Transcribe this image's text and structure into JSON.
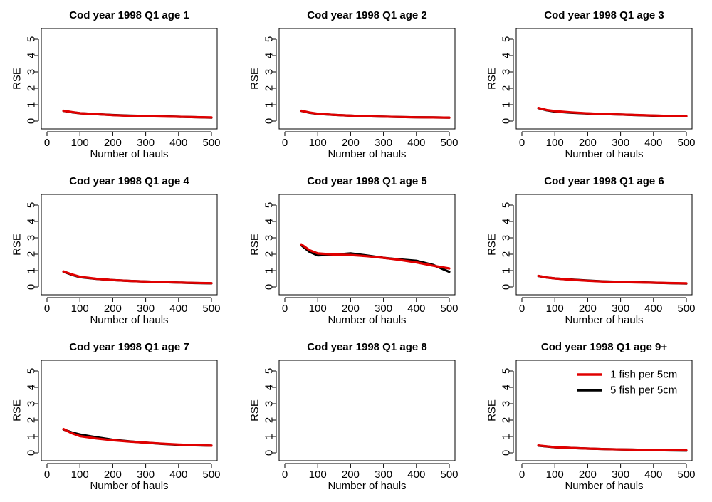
{
  "figure": {
    "ylabel": "RSE",
    "xlabel": "Number of hauls",
    "legend": {
      "placement": "top-right of panel 9",
      "entries": [
        {
          "name": "1 fish per 5cm",
          "color": "#e00000"
        },
        {
          "name": "5 fish per 5cm",
          "color": "#000000"
        }
      ]
    }
  },
  "chart_data": [
    {
      "type": "line",
      "title": "Cod year 1998 Q1 age 1",
      "xlabel": "Number of hauls",
      "ylabel": "RSE",
      "xlim": [
        0,
        500
      ],
      "ylim": [
        0,
        5
      ],
      "xticks": [
        "0",
        "100",
        "200",
        "300",
        "400",
        "500"
      ],
      "yticks": [
        "0",
        "1",
        "2",
        "3",
        "4",
        "5"
      ],
      "grid": false,
      "x": [
        50,
        75,
        100,
        150,
        200,
        250,
        300,
        350,
        400,
        450,
        500
      ],
      "series": [
        {
          "name": "1 fish per 5cm",
          "color": "#e00000",
          "values": [
            0.63,
            0.55,
            0.48,
            0.42,
            0.36,
            0.32,
            0.3,
            0.28,
            0.26,
            0.24,
            0.22
          ]
        },
        {
          "name": "5 fish per 5cm",
          "color": "#000000",
          "values": [
            0.62,
            0.54,
            0.48,
            0.42,
            0.37,
            0.33,
            0.31,
            0.29,
            0.26,
            0.24,
            0.21
          ]
        }
      ]
    },
    {
      "type": "line",
      "title": "Cod year 1998 Q1 age 2",
      "xlabel": "Number of hauls",
      "ylabel": "RSE",
      "xlim": [
        0,
        500
      ],
      "ylim": [
        0,
        5
      ],
      "xticks": [
        "0",
        "100",
        "200",
        "300",
        "400",
        "500"
      ],
      "yticks": [
        "0",
        "1",
        "2",
        "3",
        "4",
        "5"
      ],
      "grid": false,
      "x": [
        50,
        75,
        100,
        150,
        200,
        250,
        300,
        350,
        400,
        450,
        500
      ],
      "series": [
        {
          "name": "1 fish per 5cm",
          "color": "#e00000",
          "values": [
            0.63,
            0.52,
            0.45,
            0.38,
            0.33,
            0.29,
            0.27,
            0.25,
            0.23,
            0.22,
            0.21
          ]
        },
        {
          "name": "5 fish per 5cm",
          "color": "#000000",
          "values": [
            0.62,
            0.51,
            0.44,
            0.38,
            0.33,
            0.29,
            0.27,
            0.25,
            0.23,
            0.22,
            0.21
          ]
        }
      ]
    },
    {
      "type": "line",
      "title": "Cod year 1998 Q1 age 3",
      "xlabel": "Number of hauls",
      "ylabel": "RSE",
      "xlim": [
        0,
        500
      ],
      "ylim": [
        0,
        5
      ],
      "xticks": [
        "0",
        "100",
        "200",
        "300",
        "400",
        "500"
      ],
      "yticks": [
        "0",
        "1",
        "2",
        "3",
        "4",
        "5"
      ],
      "grid": false,
      "x": [
        50,
        75,
        100,
        150,
        200,
        250,
        300,
        350,
        400,
        450,
        500
      ],
      "series": [
        {
          "name": "1 fish per 5cm",
          "color": "#e00000",
          "values": [
            0.8,
            0.68,
            0.61,
            0.53,
            0.47,
            0.43,
            0.4,
            0.37,
            0.34,
            0.31,
            0.29
          ]
        },
        {
          "name": "5 fish per 5cm",
          "color": "#000000",
          "values": [
            0.79,
            0.66,
            0.58,
            0.51,
            0.46,
            0.43,
            0.4,
            0.36,
            0.33,
            0.31,
            0.29
          ]
        }
      ]
    },
    {
      "type": "line",
      "title": "Cod year 1998 Q1 age 4",
      "xlabel": "Number of hauls",
      "ylabel": "RSE",
      "xlim": [
        0,
        500
      ],
      "ylim": [
        0,
        5
      ],
      "xticks": [
        "0",
        "100",
        "200",
        "300",
        "400",
        "500"
      ],
      "yticks": [
        "0",
        "1",
        "2",
        "3",
        "4",
        "5"
      ],
      "grid": false,
      "x": [
        50,
        75,
        100,
        150,
        200,
        250,
        300,
        350,
        400,
        450,
        500
      ],
      "series": [
        {
          "name": "1 fish per 5cm",
          "color": "#e00000",
          "values": [
            0.95,
            0.77,
            0.62,
            0.5,
            0.42,
            0.37,
            0.33,
            0.3,
            0.27,
            0.25,
            0.23
          ]
        },
        {
          "name": "5 fish per 5cm",
          "color": "#000000",
          "values": [
            0.93,
            0.75,
            0.6,
            0.49,
            0.42,
            0.37,
            0.33,
            0.3,
            0.27,
            0.24,
            0.22
          ]
        }
      ]
    },
    {
      "type": "line",
      "title": "Cod year 1998 Q1 age 5",
      "xlabel": "Number of hauls",
      "ylabel": "RSE",
      "xlim": [
        0,
        500
      ],
      "ylim": [
        0,
        5
      ],
      "xticks": [
        "0",
        "100",
        "200",
        "300",
        "400",
        "500"
      ],
      "yticks": [
        "0",
        "1",
        "2",
        "3",
        "4",
        "5"
      ],
      "grid": false,
      "x": [
        50,
        75,
        100,
        150,
        200,
        250,
        300,
        350,
        400,
        450,
        500
      ],
      "series": [
        {
          "name": "1 fish per 5cm",
          "color": "#e00000",
          "values": [
            2.6,
            2.25,
            2.05,
            1.98,
            1.95,
            1.88,
            1.78,
            1.65,
            1.5,
            1.3,
            1.13
          ]
        },
        {
          "name": "5 fish per 5cm",
          "color": "#000000",
          "values": [
            2.55,
            2.15,
            1.93,
            1.97,
            2.05,
            1.92,
            1.78,
            1.68,
            1.6,
            1.35,
            0.92
          ]
        }
      ]
    },
    {
      "type": "line",
      "title": "Cod year 1998 Q1 age 6",
      "xlabel": "Number of hauls",
      "ylabel": "RSE",
      "xlim": [
        0,
        500
      ],
      "ylim": [
        0,
        5
      ],
      "xticks": [
        "0",
        "100",
        "200",
        "300",
        "400",
        "500"
      ],
      "yticks": [
        "0",
        "1",
        "2",
        "3",
        "4",
        "5"
      ],
      "grid": false,
      "x": [
        50,
        75,
        100,
        150,
        200,
        250,
        300,
        350,
        400,
        450,
        500
      ],
      "series": [
        {
          "name": "1 fish per 5cm",
          "color": "#e00000",
          "values": [
            0.68,
            0.58,
            0.52,
            0.44,
            0.38,
            0.33,
            0.3,
            0.28,
            0.26,
            0.24,
            0.22
          ]
        },
        {
          "name": "5 fish per 5cm",
          "color": "#000000",
          "values": [
            0.67,
            0.58,
            0.52,
            0.45,
            0.39,
            0.34,
            0.31,
            0.29,
            0.26,
            0.23,
            0.21
          ]
        }
      ]
    },
    {
      "type": "line",
      "title": "Cod year 1998 Q1 age 7",
      "xlabel": "Number of hauls",
      "ylabel": "RSE",
      "xlim": [
        0,
        500
      ],
      "ylim": [
        0,
        5
      ],
      "xticks": [
        "0",
        "100",
        "200",
        "300",
        "400",
        "500"
      ],
      "yticks": [
        "0",
        "1",
        "2",
        "3",
        "4",
        "5"
      ],
      "grid": false,
      "x": [
        50,
        75,
        100,
        150,
        200,
        250,
        300,
        350,
        400,
        450,
        500
      ],
      "series": [
        {
          "name": "1 fish per 5cm",
          "color": "#e00000",
          "values": [
            1.45,
            1.2,
            1.02,
            0.88,
            0.77,
            0.69,
            0.62,
            0.56,
            0.51,
            0.47,
            0.44
          ]
        },
        {
          "name": "5 fish per 5cm",
          "color": "#000000",
          "values": [
            1.43,
            1.25,
            1.12,
            0.95,
            0.8,
            0.7,
            0.62,
            0.55,
            0.49,
            0.46,
            0.44
          ]
        }
      ]
    },
    {
      "type": "line",
      "title": "Cod year 1998 Q1 age 8",
      "xlabel": "Number of hauls",
      "ylabel": "RSE",
      "xlim": [
        0,
        500
      ],
      "ylim": [
        0,
        5
      ],
      "xticks": [
        "0",
        "100",
        "200",
        "300",
        "400",
        "500"
      ],
      "yticks": [
        "0",
        "1",
        "2",
        "3",
        "4",
        "5"
      ],
      "grid": false,
      "x": [],
      "series": []
    },
    {
      "type": "line",
      "title": "Cod year 1998 Q1 age 9+",
      "xlabel": "Number of hauls",
      "ylabel": "RSE",
      "xlim": [
        0,
        500
      ],
      "ylim": [
        0,
        5
      ],
      "xticks": [
        "0",
        "100",
        "200",
        "300",
        "400",
        "500"
      ],
      "yticks": [
        "0",
        "1",
        "2",
        "3",
        "4",
        "5"
      ],
      "grid": false,
      "legend": "top-right",
      "x": [
        50,
        75,
        100,
        150,
        200,
        250,
        300,
        350,
        400,
        450,
        500
      ],
      "series": [
        {
          "name": "1 fish per 5cm",
          "color": "#e00000",
          "values": [
            0.45,
            0.4,
            0.35,
            0.3,
            0.26,
            0.23,
            0.21,
            0.19,
            0.17,
            0.16,
            0.15
          ]
        },
        {
          "name": "5 fish per 5cm",
          "color": "#000000",
          "values": [
            0.44,
            0.39,
            0.34,
            0.3,
            0.26,
            0.23,
            0.21,
            0.19,
            0.17,
            0.15,
            0.14
          ]
        }
      ]
    }
  ]
}
